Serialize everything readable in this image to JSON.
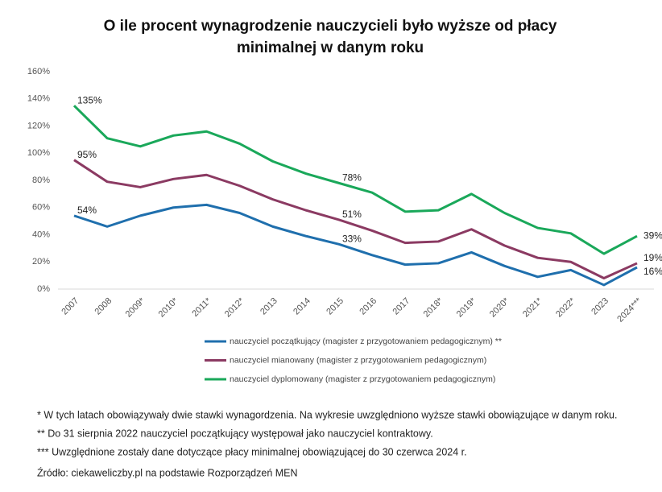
{
  "chart_data": {
    "type": "line",
    "title": [
      "O ile procent wynagrodzenie nauczycieli było wyższe od płacy",
      "minimalnej w danym roku"
    ],
    "categories": [
      "2007",
      "2008",
      "2009*",
      "2010*",
      "2011*",
      "2012*",
      "2013",
      "2014",
      "2015",
      "2016",
      "2017",
      "2018*",
      "2019*",
      "2020*",
      "2021*",
      "2022*",
      "2023",
      "2024***"
    ],
    "series": [
      {
        "name": "nauczyciel początkujący (magister z przygotowaniem pedagogicznym) **",
        "color": "#1f6fad",
        "values": [
          54,
          46,
          54,
          60,
          62,
          56,
          46,
          39,
          33,
          25,
          18,
          19,
          27,
          17,
          9,
          14,
          3,
          16
        ],
        "value_labels": [
          "54%",
          null,
          null,
          null,
          null,
          null,
          null,
          null,
          "33%",
          null,
          null,
          null,
          null,
          null,
          null,
          null,
          null,
          "16%"
        ]
      },
      {
        "name": "nauczyciel mianowany (magister z przygotowaniem pedagogicznym)",
        "color": "#8b3a62",
        "values": [
          95,
          79,
          75,
          81,
          84,
          76,
          66,
          58,
          51,
          43,
          34,
          35,
          44,
          32,
          23,
          20,
          8,
          19
        ],
        "value_labels": [
          "95%",
          null,
          null,
          null,
          null,
          null,
          null,
          null,
          "51%",
          null,
          null,
          null,
          null,
          null,
          null,
          null,
          null,
          "19%"
        ]
      },
      {
        "name": "nauczyciel dyplomowany (magister z przygotowaniem pedagogicznym)",
        "color": "#1aa85a",
        "values": [
          135,
          111,
          105,
          113,
          116,
          107,
          94,
          85,
          78,
          71,
          57,
          58,
          70,
          56,
          45,
          41,
          26,
          39
        ],
        "value_labels": [
          "135%",
          null,
          null,
          null,
          null,
          null,
          null,
          null,
          "78%",
          null,
          null,
          null,
          null,
          null,
          null,
          null,
          null,
          "39%"
        ]
      }
    ],
    "ylim": [
      0,
      160
    ],
    "yticks": [
      {
        "value": 0,
        "label": "0%"
      },
      {
        "value": 20,
        "label": "20%"
      },
      {
        "value": 40,
        "label": "40%"
      },
      {
        "value": 60,
        "label": "60%"
      },
      {
        "value": 80,
        "label": "80%"
      },
      {
        "value": 100,
        "label": "100%"
      },
      {
        "value": 120,
        "label": "120%"
      },
      {
        "value": 140,
        "label": "140%"
      },
      {
        "value": 160,
        "label": "160%"
      }
    ],
    "grid": false,
    "notes": [
      "* W tych latach obowiązywały dwie stawki wynagordzenia. Na wykresie uwzględniono wyższe stawki obowiązujące w danym roku.",
      "** Do 31 sierpnia 2022 nauczyciel początkujący występował jako nauczyciel kontraktowy.",
      "*** Uwzględnione zostały dane dotyczące płacy minimalnej obowiązującej do 30 czerwca 2024 r."
    ],
    "source": "Źródło: ciekaweliczby.pl na podstawie Rozporządzeń MEN"
  }
}
